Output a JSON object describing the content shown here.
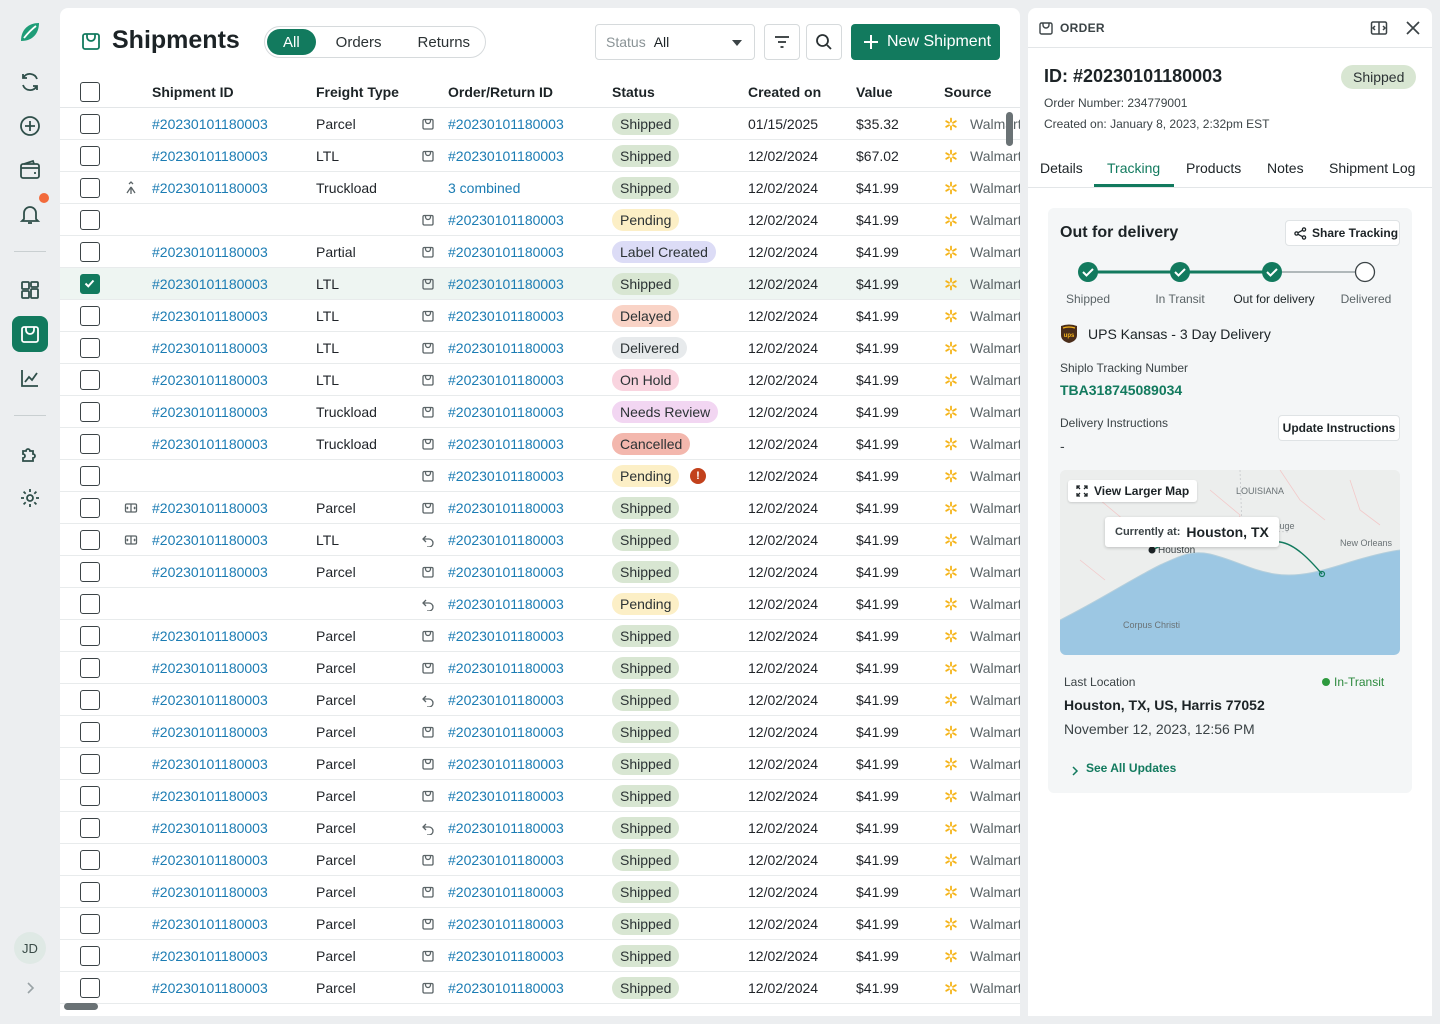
{
  "user": {
    "initials": "JD"
  },
  "header": {
    "title": "Shipments",
    "segments": [
      {
        "label": "All",
        "active": true
      },
      {
        "label": "Orders",
        "active": false
      },
      {
        "label": "Returns",
        "active": false
      }
    ],
    "status_filter": {
      "label": "Status",
      "value": "All"
    },
    "new_button_label": "New Shipment"
  },
  "table": {
    "columns": [
      "Shipment ID",
      "Freight Type",
      "Order/Return ID",
      "Status",
      "Created on",
      "Value",
      "Source"
    ],
    "rows": [
      {
        "lead": "",
        "shipment_id": "#20230101180003",
        "freight": "Parcel",
        "type_icon": "bag",
        "order_id": "#20230101180003",
        "status": "Shipped",
        "created": "01/15/2025",
        "value": "$35.32",
        "source": "Walmart"
      },
      {
        "lead": "",
        "shipment_id": "#20230101180003",
        "freight": "LTL",
        "type_icon": "bag",
        "order_id": "#20230101180003",
        "status": "Shipped",
        "created": "12/02/2024",
        "value": "$67.02",
        "source": "Walmart"
      },
      {
        "lead": "merge",
        "shipment_id": "#20230101180003",
        "freight": "Truckload",
        "type_icon": "",
        "order_id": "3 combined",
        "status": "Shipped",
        "created": "12/02/2024",
        "value": "$41.99",
        "source": "Walmart"
      },
      {
        "lead": "",
        "shipment_id": "",
        "freight": "",
        "type_icon": "bag",
        "order_id": "#20230101180003",
        "status": "Pending",
        "created": "12/02/2024",
        "value": "$41.99",
        "source": "Walmart"
      },
      {
        "lead": "",
        "shipment_id": "#20230101180003",
        "freight": "Partial",
        "type_icon": "bag",
        "order_id": "#20230101180003",
        "status": "Label Created",
        "created": "12/02/2024",
        "value": "$41.99",
        "source": "Walmart"
      },
      {
        "lead": "",
        "shipment_id": "#20230101180003",
        "freight": "LTL",
        "type_icon": "bag",
        "order_id": "#20230101180003",
        "status": "Shipped",
        "created": "12/02/2024",
        "value": "$41.99",
        "source": "Walmart",
        "selected": true
      },
      {
        "lead": "",
        "shipment_id": "#20230101180003",
        "freight": "LTL",
        "type_icon": "bag",
        "order_id": "#20230101180003",
        "status": "Delayed",
        "created": "12/02/2024",
        "value": "$41.99",
        "source": "Walmart"
      },
      {
        "lead": "",
        "shipment_id": "#20230101180003",
        "freight": "LTL",
        "type_icon": "bag",
        "order_id": "#20230101180003",
        "status": "Delivered",
        "created": "12/02/2024",
        "value": "$41.99",
        "source": "Walmart"
      },
      {
        "lead": "",
        "shipment_id": "#20230101180003",
        "freight": "LTL",
        "type_icon": "bag",
        "order_id": "#20230101180003",
        "status": "On Hold",
        "created": "12/02/2024",
        "value": "$41.99",
        "source": "Walmart"
      },
      {
        "lead": "",
        "shipment_id": "#20230101180003",
        "freight": "Truckload",
        "type_icon": "bag",
        "order_id": "#20230101180003",
        "status": "Needs Review",
        "created": "12/02/2024",
        "value": "$41.99",
        "source": "Walmart"
      },
      {
        "lead": "",
        "shipment_id": "#20230101180003",
        "freight": "Truckload",
        "type_icon": "bag",
        "order_id": "#20230101180003",
        "status": "Cancelled",
        "created": "12/02/2024",
        "value": "$41.99",
        "source": "Walmart"
      },
      {
        "lead": "",
        "shipment_id": "",
        "freight": "",
        "type_icon": "bag",
        "order_id": "#20230101180003",
        "status": "Pending",
        "created": "12/02/2024",
        "value": "$41.99",
        "source": "Walmart",
        "warning": "!"
      },
      {
        "lead": "split",
        "shipment_id": "#20230101180003",
        "freight": "Parcel",
        "type_icon": "bag",
        "order_id": "#20230101180003",
        "status": "Shipped",
        "created": "12/02/2024",
        "value": "$41.99",
        "source": "Walmart"
      },
      {
        "lead": "split",
        "shipment_id": "#20230101180003",
        "freight": "LTL",
        "type_icon": "return",
        "order_id": "#20230101180003",
        "status": "Shipped",
        "created": "12/02/2024",
        "value": "$41.99",
        "source": "Walmart"
      },
      {
        "lead": "",
        "shipment_id": "#20230101180003",
        "freight": "Parcel",
        "type_icon": "bag",
        "order_id": "#20230101180003",
        "status": "Shipped",
        "created": "12/02/2024",
        "value": "$41.99",
        "source": "Walmart"
      },
      {
        "lead": "",
        "shipment_id": "",
        "freight": "",
        "type_icon": "return",
        "order_id": "#20230101180003",
        "status": "Pending",
        "created": "12/02/2024",
        "value": "$41.99",
        "source": "Walmart"
      },
      {
        "lead": "",
        "shipment_id": "#20230101180003",
        "freight": "Parcel",
        "type_icon": "bag",
        "order_id": "#20230101180003",
        "status": "Shipped",
        "created": "12/02/2024",
        "value": "$41.99",
        "source": "Walmart"
      },
      {
        "lead": "",
        "shipment_id": "#20230101180003",
        "freight": "Parcel",
        "type_icon": "bag",
        "order_id": "#20230101180003",
        "status": "Shipped",
        "created": "12/02/2024",
        "value": "$41.99",
        "source": "Walmart"
      },
      {
        "lead": "",
        "shipment_id": "#20230101180003",
        "freight": "Parcel",
        "type_icon": "return",
        "order_id": "#20230101180003",
        "status": "Shipped",
        "created": "12/02/2024",
        "value": "$41.99",
        "source": "Walmart"
      },
      {
        "lead": "",
        "shipment_id": "#20230101180003",
        "freight": "Parcel",
        "type_icon": "bag",
        "order_id": "#20230101180003",
        "status": "Shipped",
        "created": "12/02/2024",
        "value": "$41.99",
        "source": "Walmart"
      },
      {
        "lead": "",
        "shipment_id": "#20230101180003",
        "freight": "Parcel",
        "type_icon": "bag",
        "order_id": "#20230101180003",
        "status": "Shipped",
        "created": "12/02/2024",
        "value": "$41.99",
        "source": "Walmart"
      },
      {
        "lead": "",
        "shipment_id": "#20230101180003",
        "freight": "Parcel",
        "type_icon": "bag",
        "order_id": "#20230101180003",
        "status": "Shipped",
        "created": "12/02/2024",
        "value": "$41.99",
        "source": "Walmart"
      },
      {
        "lead": "",
        "shipment_id": "#20230101180003",
        "freight": "Parcel",
        "type_icon": "return",
        "order_id": "#20230101180003",
        "status": "Shipped",
        "created": "12/02/2024",
        "value": "$41.99",
        "source": "Walmart"
      },
      {
        "lead": "",
        "shipment_id": "#20230101180003",
        "freight": "Parcel",
        "type_icon": "bag",
        "order_id": "#20230101180003",
        "status": "Shipped",
        "created": "12/02/2024",
        "value": "$41.99",
        "source": "Walmart"
      },
      {
        "lead": "",
        "shipment_id": "#20230101180003",
        "freight": "Parcel",
        "type_icon": "bag",
        "order_id": "#20230101180003",
        "status": "Shipped",
        "created": "12/02/2024",
        "value": "$41.99",
        "source": "Walmart"
      },
      {
        "lead": "",
        "shipment_id": "#20230101180003",
        "freight": "Parcel",
        "type_icon": "bag",
        "order_id": "#20230101180003",
        "status": "Shipped",
        "created": "12/02/2024",
        "value": "$41.99",
        "source": "Walmart"
      },
      {
        "lead": "",
        "shipment_id": "#20230101180003",
        "freight": "Parcel",
        "type_icon": "bag",
        "order_id": "#20230101180003",
        "status": "Shipped",
        "created": "12/02/2024",
        "value": "$41.99",
        "source": "Walmart"
      },
      {
        "lead": "",
        "shipment_id": "#20230101180003",
        "freight": "Parcel",
        "type_icon": "bag",
        "order_id": "#20230101180003",
        "status": "Shipped",
        "created": "12/02/2024",
        "value": "$41.99",
        "source": "Walmart"
      }
    ]
  },
  "panel": {
    "label": "ORDER",
    "id": "ID: #20230101180003",
    "status": "Shipped",
    "order_number": "Order Number: 234779001",
    "created_on_label": "Created on:",
    "created_on": "January 8, 2023, 2:32pm EST",
    "tabs": [
      "Details",
      "Tracking",
      "Products",
      "Notes",
      "Shipment Log"
    ],
    "active_tab": "Tracking",
    "tracking": {
      "headline": "Out for delivery",
      "share_label": "Share Tracking",
      "steps": [
        {
          "label": "Shipped",
          "done": true
        },
        {
          "label": "In Transit",
          "done": true
        },
        {
          "label": "Out for delivery",
          "done": true,
          "current": true
        },
        {
          "label": "Delivered",
          "done": false
        }
      ],
      "carrier": "UPS Kansas - 3 Day Delivery",
      "tracking_label": "Shiplo Tracking Number",
      "tracking_number": "TBA318745089034",
      "instructions_label": "Delivery Instructions",
      "instructions_value": "-",
      "update_label": "Update Instructions",
      "map": {
        "button_label": "View Larger Map",
        "currently_at_label": "Currently at:",
        "currently_at": "Houston, TX",
        "places": [
          "LOUISIANA",
          "ton Rouge",
          "New Orleans",
          "Houston",
          "Corpus Christi"
        ]
      },
      "last_location_label": "Last Location",
      "last_location_status": "In-Transit",
      "last_location": "Houston, TX, US, Harris 77052",
      "last_location_time": "November 12, 2023, 12:56 PM",
      "see_all_label": "See All Updates"
    }
  },
  "colors": {
    "brand": "#127a5e",
    "link": "#1b7cb3"
  }
}
